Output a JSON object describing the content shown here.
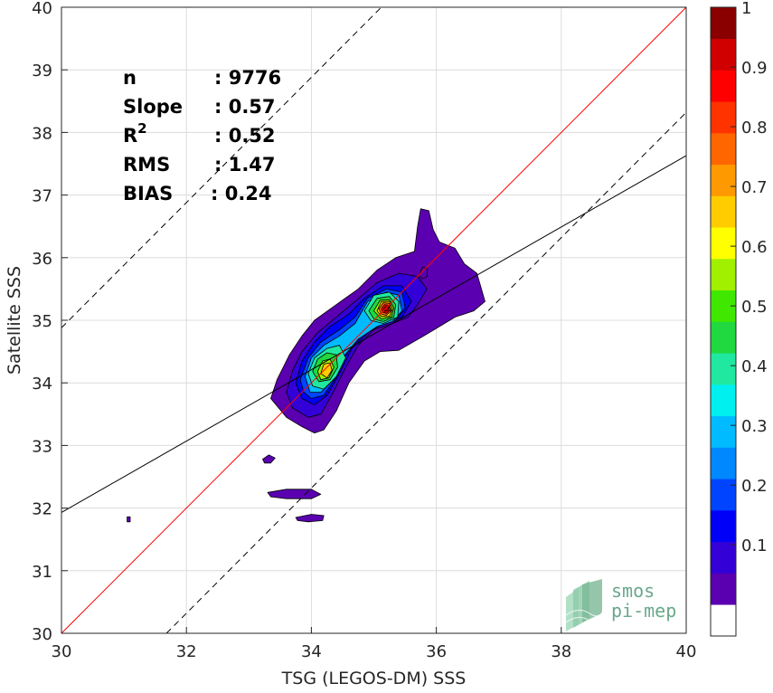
{
  "chart_data": {
    "type": "scatter",
    "subtype": "density-contour",
    "xlabel": "TSG (LEGOS-DM) SSS",
    "ylabel": "Satellite SSS",
    "xlim": [
      30,
      40
    ],
    "ylim": [
      30,
      40
    ],
    "xticks": [
      "30",
      "32",
      "34",
      "36",
      "38",
      "40"
    ],
    "yticks": [
      "30",
      "31",
      "32",
      "33",
      "34",
      "35",
      "36",
      "37",
      "38",
      "39",
      "40"
    ],
    "grid": true,
    "stats": [
      {
        "label": "n",
        "value": ": 9776"
      },
      {
        "label": "Slope",
        "value": ": 0.57"
      },
      {
        "label": "R",
        "sup": "2",
        "value": ": 0.52"
      },
      {
        "label": "RMS",
        "value": ": 1.47"
      },
      {
        "label": "BIAS",
        "value": ": 0.24"
      }
    ],
    "lines": {
      "identity": {
        "slope": 1,
        "intercept": 0,
        "color": "#ff0000"
      },
      "fit": {
        "slope": 0.57,
        "intercept": 14.83,
        "color": "#000000"
      },
      "upper_bound": {
        "slope": 1,
        "intercept": 4.88,
        "color": "#000000",
        "style": "dashed"
      },
      "lower_bound": {
        "slope": 1,
        "intercept": -1.68,
        "color": "#000000",
        "style": "dashed"
      }
    },
    "colorbar": {
      "min": 0,
      "max": 1,
      "ticks": [
        "0.1",
        "0.2",
        "0.3",
        "0.4",
        "0.5",
        "0.6",
        "0.7",
        "0.8",
        "0.9",
        "1"
      ],
      "colors": [
        "#ffffff",
        "#5a00b0",
        "#3300d8",
        "#0000f8",
        "#0044ff",
        "#0088ff",
        "#00bbff",
        "#00f0f0",
        "#20e8a0",
        "#20d840",
        "#40e800",
        "#a0f000",
        "#ffff00",
        "#ffcc00",
        "#ff9900",
        "#ff6600",
        "#ff3300",
        "#ff0000",
        "#d00000",
        "#8a0000"
      ]
    },
    "contours": [
      {
        "level": 0.05,
        "fill": "#5a00b0",
        "points": [
          [
            33.35,
            33.75
          ],
          [
            33.45,
            34.05
          ],
          [
            33.65,
            34.45
          ],
          [
            33.85,
            34.75
          ],
          [
            34.05,
            35.0
          ],
          [
            34.4,
            35.25
          ],
          [
            34.75,
            35.5
          ],
          [
            35.05,
            35.8
          ],
          [
            35.35,
            36.0
          ],
          [
            35.65,
            36.1
          ],
          [
            35.7,
            36.5
          ],
          [
            35.75,
            36.78
          ],
          [
            35.88,
            36.75
          ],
          [
            35.95,
            36.45
          ],
          [
            36.05,
            36.25
          ],
          [
            36.3,
            36.15
          ],
          [
            36.45,
            35.9
          ],
          [
            36.65,
            35.75
          ],
          [
            36.78,
            35.3
          ],
          [
            36.6,
            35.15
          ],
          [
            36.3,
            35.05
          ],
          [
            36.05,
            34.9
          ],
          [
            35.8,
            34.75
          ],
          [
            35.4,
            34.52
          ],
          [
            35.1,
            34.5
          ],
          [
            34.85,
            34.35
          ],
          [
            34.6,
            34.0
          ],
          [
            34.4,
            33.55
          ],
          [
            34.2,
            33.25
          ],
          [
            34.05,
            33.2
          ],
          [
            33.85,
            33.3
          ],
          [
            33.6,
            33.45
          ]
        ]
      },
      {
        "level": 0.05,
        "fill": "#5a00b0",
        "points": [
          [
            33.22,
            32.78
          ],
          [
            33.32,
            32.85
          ],
          [
            33.42,
            32.8
          ],
          [
            33.35,
            32.72
          ],
          [
            33.25,
            32.72
          ]
        ]
      },
      {
        "level": 0.05,
        "fill": "#5a00b0",
        "points": [
          [
            33.3,
            32.25
          ],
          [
            33.6,
            32.3
          ],
          [
            34.0,
            32.3
          ],
          [
            34.15,
            32.22
          ],
          [
            34.0,
            32.15
          ],
          [
            33.6,
            32.15
          ],
          [
            33.35,
            32.18
          ]
        ]
      },
      {
        "level": 0.05,
        "fill": "#5a00b0",
        "points": [
          [
            33.75,
            31.85
          ],
          [
            34.0,
            31.9
          ],
          [
            34.2,
            31.88
          ],
          [
            34.18,
            31.8
          ],
          [
            33.95,
            31.78
          ],
          [
            33.78,
            31.8
          ]
        ]
      },
      {
        "level": 0.05,
        "fill": "#5a00b0",
        "points": [
          [
            31.05,
            31.86
          ],
          [
            31.1,
            31.86
          ],
          [
            31.1,
            31.78
          ],
          [
            31.05,
            31.78
          ]
        ]
      },
      {
        "level": 0.1,
        "fill": "#3300d8",
        "points": [
          [
            33.6,
            33.85
          ],
          [
            33.7,
            34.2
          ],
          [
            33.85,
            34.5
          ],
          [
            34.1,
            34.8
          ],
          [
            34.4,
            35.05
          ],
          [
            34.7,
            35.3
          ],
          [
            35.05,
            35.6
          ],
          [
            35.4,
            35.75
          ],
          [
            35.7,
            35.7
          ],
          [
            35.85,
            35.5
          ],
          [
            35.7,
            35.25
          ],
          [
            35.55,
            35.05
          ],
          [
            35.3,
            34.95
          ],
          [
            35.0,
            34.85
          ],
          [
            34.75,
            34.6
          ],
          [
            34.55,
            34.25
          ],
          [
            34.35,
            33.85
          ],
          [
            34.15,
            33.5
          ],
          [
            33.95,
            33.45
          ],
          [
            33.7,
            33.6
          ]
        ]
      },
      {
        "level": 0.15,
        "fill": "#0000f8",
        "points": [
          [
            33.75,
            34.0
          ],
          [
            33.85,
            34.35
          ],
          [
            34.05,
            34.65
          ],
          [
            34.3,
            34.9
          ],
          [
            34.6,
            35.1
          ],
          [
            34.85,
            35.35
          ],
          [
            35.15,
            35.55
          ],
          [
            35.45,
            35.55
          ],
          [
            35.6,
            35.3
          ],
          [
            35.45,
            35.05
          ],
          [
            35.15,
            34.95
          ],
          [
            34.9,
            34.8
          ],
          [
            34.65,
            34.55
          ],
          [
            34.45,
            34.15
          ],
          [
            34.25,
            33.8
          ],
          [
            34.05,
            33.65
          ],
          [
            33.85,
            33.75
          ]
        ]
      },
      {
        "level": 0.2,
        "fill": "#0044ff",
        "points": [
          [
            33.82,
            34.05
          ],
          [
            33.95,
            34.4
          ],
          [
            34.15,
            34.65
          ],
          [
            34.45,
            34.85
          ],
          [
            34.7,
            35.05
          ],
          [
            34.9,
            35.35
          ],
          [
            35.2,
            35.5
          ],
          [
            35.45,
            35.45
          ],
          [
            35.5,
            35.2
          ],
          [
            35.35,
            35.0
          ],
          [
            35.05,
            34.9
          ],
          [
            34.8,
            34.75
          ],
          [
            34.55,
            34.45
          ],
          [
            34.4,
            34.1
          ],
          [
            34.2,
            33.8
          ],
          [
            34.0,
            33.75
          ],
          [
            33.88,
            33.85
          ]
        ]
      },
      {
        "level": 0.3,
        "fill": "#00bbff",
        "points": [
          [
            33.9,
            34.1
          ],
          [
            34.0,
            34.4
          ],
          [
            34.2,
            34.6
          ],
          [
            34.45,
            34.75
          ],
          [
            34.7,
            34.95
          ],
          [
            34.9,
            35.3
          ],
          [
            35.2,
            35.45
          ],
          [
            35.4,
            35.4
          ],
          [
            35.45,
            35.15
          ],
          [
            35.3,
            34.98
          ],
          [
            35.05,
            34.9
          ],
          [
            34.75,
            34.7
          ],
          [
            34.5,
            34.4
          ],
          [
            34.35,
            34.05
          ],
          [
            34.15,
            33.85
          ],
          [
            33.98,
            33.85
          ]
        ]
      },
      {
        "level": 0.4,
        "fill": "#20e8a0",
        "points": [
          [
            33.95,
            34.15
          ],
          [
            34.05,
            34.4
          ],
          [
            34.25,
            34.55
          ],
          [
            34.45,
            34.6
          ],
          [
            34.55,
            34.4
          ],
          [
            34.4,
            34.1
          ],
          [
            34.2,
            33.9
          ],
          [
            34.02,
            33.95
          ]
        ]
      },
      {
        "level": 0.4,
        "fill": "#20e8a0",
        "points": [
          [
            34.85,
            35.15
          ],
          [
            35.0,
            35.4
          ],
          [
            35.25,
            35.45
          ],
          [
            35.4,
            35.3
          ],
          [
            35.38,
            35.05
          ],
          [
            35.15,
            34.95
          ],
          [
            34.95,
            35.0
          ]
        ]
      },
      {
        "level": 0.5,
        "fill": "#20d840",
        "points": [
          [
            34.02,
            34.18
          ],
          [
            34.1,
            34.38
          ],
          [
            34.25,
            34.48
          ],
          [
            34.4,
            34.45
          ],
          [
            34.42,
            34.25
          ],
          [
            34.3,
            34.05
          ],
          [
            34.12,
            34.02
          ]
        ]
      },
      {
        "level": 0.5,
        "fill": "#20d840",
        "points": [
          [
            34.92,
            35.15
          ],
          [
            35.05,
            35.35
          ],
          [
            35.25,
            35.38
          ],
          [
            35.35,
            35.25
          ],
          [
            35.32,
            35.05
          ],
          [
            35.15,
            34.98
          ],
          [
            35.0,
            35.02
          ]
        ]
      },
      {
        "level": 0.6,
        "fill": "#a0f000",
        "points": [
          [
            34.1,
            34.18
          ],
          [
            34.18,
            34.35
          ],
          [
            34.3,
            34.38
          ],
          [
            34.36,
            34.25
          ],
          [
            34.28,
            34.08
          ],
          [
            34.15,
            34.05
          ]
        ]
      },
      {
        "level": 0.6,
        "fill": "#a0f000",
        "points": [
          [
            35.0,
            35.15
          ],
          [
            35.1,
            35.32
          ],
          [
            35.25,
            35.33
          ],
          [
            35.32,
            35.2
          ],
          [
            35.28,
            35.05
          ],
          [
            35.12,
            35.02
          ]
        ]
      },
      {
        "level": 0.7,
        "fill": "#ffcc00",
        "points": [
          [
            34.15,
            34.15
          ],
          [
            34.2,
            34.3
          ],
          [
            34.3,
            34.32
          ],
          [
            34.33,
            34.2
          ],
          [
            34.25,
            34.08
          ]
        ]
      },
      {
        "level": 0.7,
        "fill": "#ffcc00",
        "points": [
          [
            35.05,
            35.15
          ],
          [
            35.12,
            35.3
          ],
          [
            35.25,
            35.3
          ],
          [
            35.3,
            35.18
          ],
          [
            35.25,
            35.06
          ],
          [
            35.12,
            35.06
          ]
        ]
      },
      {
        "level": 0.8,
        "fill": "#ff6600",
        "points": [
          [
            35.08,
            35.18
          ],
          [
            35.15,
            35.28
          ],
          [
            35.25,
            35.27
          ],
          [
            35.28,
            35.15
          ],
          [
            35.2,
            35.08
          ],
          [
            35.12,
            35.1
          ]
        ]
      },
      {
        "level": 0.9,
        "fill": "#ff0000",
        "points": [
          [
            35.12,
            35.18
          ],
          [
            35.17,
            35.25
          ],
          [
            35.24,
            35.24
          ],
          [
            35.26,
            35.16
          ],
          [
            35.2,
            35.11
          ],
          [
            35.14,
            35.13
          ]
        ]
      },
      {
        "level": 1.0,
        "fill": "#b00000",
        "points": [
          [
            35.15,
            35.18
          ],
          [
            35.19,
            35.22
          ],
          [
            35.23,
            35.21
          ],
          [
            35.23,
            35.16
          ],
          [
            35.18,
            35.14
          ]
        ]
      },
      {
        "level": 0.25,
        "fill": "#5a00b0",
        "points": [
          [
            35.72,
            35.72
          ],
          [
            35.78,
            35.85
          ],
          [
            35.86,
            35.82
          ],
          [
            35.85,
            35.7
          ],
          [
            35.77,
            35.66
          ]
        ]
      }
    ]
  },
  "logo": {
    "line1": "smos",
    "line2": "pi-mep"
  }
}
